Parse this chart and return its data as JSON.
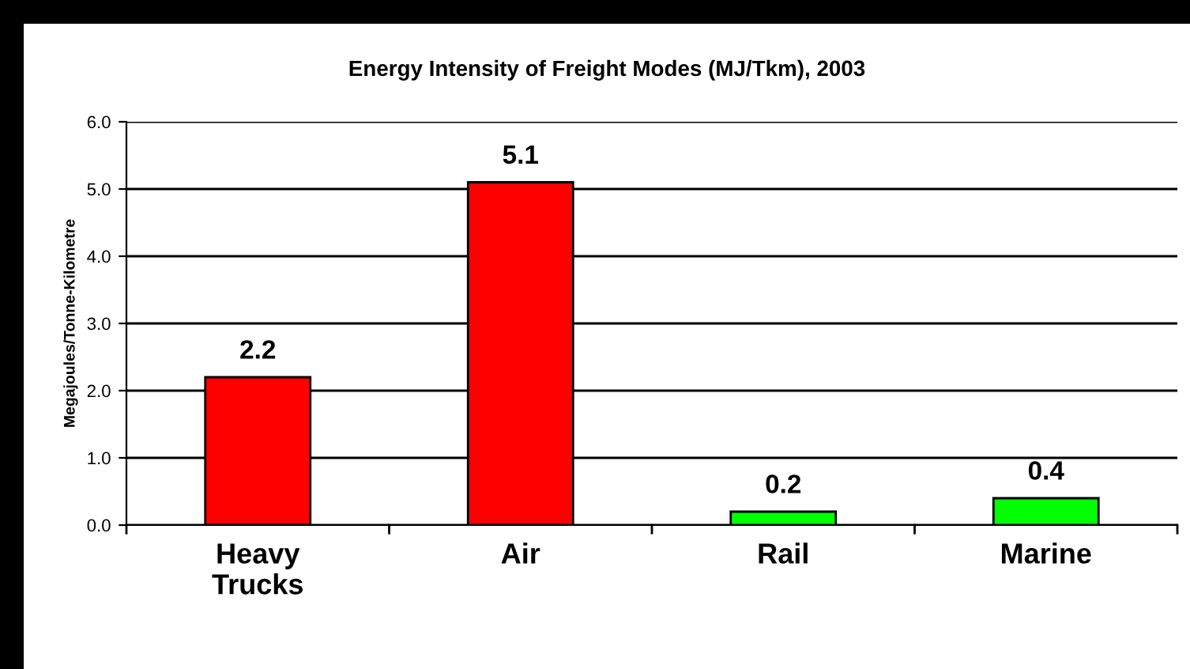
{
  "chart_data": {
    "type": "bar",
    "title": "Energy Intensity of Freight Modes (MJ/Tkm), 2003",
    "ylabel": "Megajoules/Tonne-Kilometre",
    "categories": [
      "Heavy\nTrucks",
      "Air",
      "Rail",
      "Marine"
    ],
    "values": [
      2.2,
      5.1,
      0.2,
      0.4
    ],
    "colors": [
      "#ff0000",
      "#ff0000",
      "#00ff00",
      "#00ff00"
    ],
    "ylim": [
      0,
      6
    ],
    "yticks": [
      {
        "value": 0,
        "label": "0.0"
      },
      {
        "value": 1,
        "label": "1.0"
      },
      {
        "value": 2,
        "label": "2.0"
      },
      {
        "value": 3,
        "label": "3.0"
      },
      {
        "value": 4,
        "label": "4.0"
      },
      {
        "value": 5,
        "label": "5.0"
      },
      {
        "value": 6,
        "label": "6.0"
      }
    ],
    "grid": "y",
    "data_labels": true,
    "legend": false
  }
}
